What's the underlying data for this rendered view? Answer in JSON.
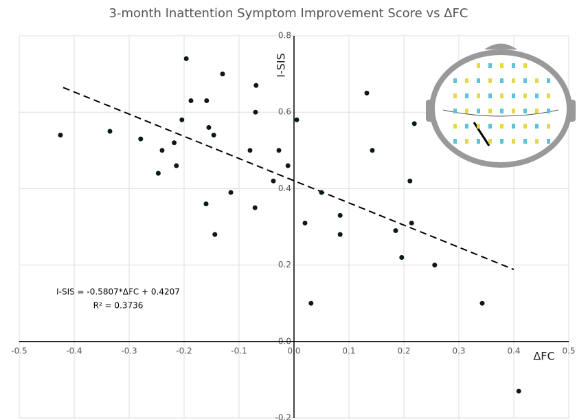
{
  "chart_data": {
    "type": "scatter",
    "title": "3-month Inattention Symptom Improvement Score vs ΔFC",
    "x_label": "ΔFC",
    "y_label": "I-SIS",
    "equation": "I-SIS = -0.5807*ΔFC + 0.4207",
    "r_squared": "R² = 0.3736",
    "trendline": {
      "slope": -0.5807,
      "intercept": 0.4207,
      "x_range": [
        -0.42,
        0.4
      ],
      "color": "#000000"
    },
    "color": "#0b1a14",
    "grid": true,
    "xlim": [
      -0.5,
      0.5
    ],
    "ylim": [
      -0.2,
      0.8
    ],
    "xticks": [
      -0.5,
      -0.4,
      -0.3,
      -0.2,
      -0.1,
      {
        "value": 0,
        "label": "0.0"
      },
      0.1,
      0.2,
      0.3,
      0.4,
      0.5
    ],
    "yticks": [
      -0.2,
      {
        "value": 0,
        "label": "0.0"
      },
      0.2,
      0.4,
      0.6,
      0.8
    ],
    "x": [
      -0.425,
      -0.335,
      -0.279,
      -0.24,
      -0.247,
      -0.218,
      -0.214,
      -0.204,
      -0.196,
      -0.1875,
      -0.159,
      -0.155,
      -0.146,
      -0.16,
      -0.144,
      -0.13,
      -0.115,
      -0.069,
      -0.07,
      -0.08,
      -0.071,
      -0.0375,
      -0.0275,
      -0.011,
      0.005,
      0.02,
      0.031,
      0.05,
      0.084,
      0.084,
      0.1325,
      0.1425,
      0.185,
      0.196,
      0.211,
      0.214,
      0.219,
      0.256,
      0.3425,
      0.409
    ],
    "values": [
      0.54,
      0.55,
      0.53,
      0.5,
      0.44,
      0.52,
      0.46,
      0.58,
      0.74,
      0.63,
      0.63,
      0.56,
      0.54,
      0.36,
      0.28,
      0.7,
      0.39,
      0.67,
      0.6,
      0.5,
      0.35,
      0.42,
      0.5,
      0.46,
      0.58,
      0.31,
      0.1,
      0.39,
      0.33,
      0.28,
      0.65,
      0.5,
      0.29,
      0.22,
      0.42,
      0.31,
      0.57,
      0.2,
      0.1,
      -0.13
    ]
  }
}
